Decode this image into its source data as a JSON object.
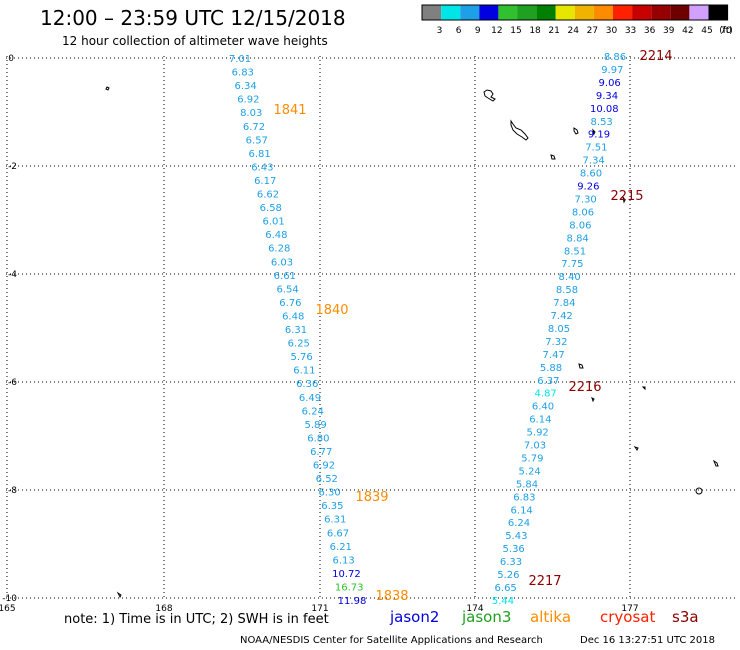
{
  "header": {
    "title": "12:00 – 23:59 UTC 12/15/2018",
    "subtitle": "12 hour collection of altimeter wave heights"
  },
  "color_scale": {
    "unit": "(ft)",
    "bins": [
      {
        "label": "3",
        "color": "#808080"
      },
      {
        "label": "6",
        "color": "#00e5e5"
      },
      {
        "label": "9",
        "color": "#1ea0e6"
      },
      {
        "label": "12",
        "color": "#0000e0"
      },
      {
        "label": "15",
        "color": "#30c030"
      },
      {
        "label": "18",
        "color": "#20a020"
      },
      {
        "label": "21",
        "color": "#008000"
      },
      {
        "label": "24",
        "color": "#e6e600"
      },
      {
        "label": "27",
        "color": "#f0b400"
      },
      {
        "label": "30",
        "color": "#ff8c00"
      },
      {
        "label": "33",
        "color": "#ff2000"
      },
      {
        "label": "36",
        "color": "#c80000"
      },
      {
        "label": "39",
        "color": "#960000"
      },
      {
        "label": "42",
        "color": "#6e0000"
      },
      {
        "label": "45",
        "color": "#d2a0ff"
      },
      {
        "label": "70",
        "color": "#000000"
      }
    ]
  },
  "axes": {
    "lat_ticks": [
      "0",
      "-2",
      "-4",
      "-6",
      "-8",
      "-10"
    ],
    "lon_ticks": [
      "165",
      "168",
      "171",
      "174",
      "177"
    ]
  },
  "tracks": [
    {
      "name": "west",
      "values": [
        "7.01",
        "6.83",
        "6.34",
        "6.92",
        "8.03",
        "6.72",
        "6.57",
        "6.81",
        "6.43",
        "6.17",
        "6.62",
        "6.58",
        "6.01",
        "6.48",
        "6.28",
        "6.03",
        "6.61",
        "6.54",
        "6.76",
        "6.48",
        "6.31",
        "6.25",
        "5.76",
        "6.11",
        "6.36",
        "6.49",
        "6.24",
        "5.89",
        "6.80",
        "6.77",
        "6.92",
        "6.52",
        "6.30",
        "6.35",
        "6.31",
        "6.67",
        "6.21",
        "6.13",
        "10.72",
        "16.73",
        "11.98"
      ],
      "colors": [
        "#1ea0e6",
        "#1ea0e6",
        "#1ea0e6",
        "#1ea0e6",
        "#1ea0e6",
        "#1ea0e6",
        "#1ea0e6",
        "#1ea0e6",
        "#1ea0e6",
        "#1ea0e6",
        "#1ea0e6",
        "#1ea0e6",
        "#1ea0e6",
        "#1ea0e6",
        "#1ea0e6",
        "#1ea0e6",
        "#1ea0e6",
        "#1ea0e6",
        "#1ea0e6",
        "#1ea0e6",
        "#1ea0e6",
        "#1ea0e6",
        "#1ea0e6",
        "#1ea0e6",
        "#1ea0e6",
        "#1ea0e6",
        "#1ea0e6",
        "#1ea0e6",
        "#1ea0e6",
        "#1ea0e6",
        "#1ea0e6",
        "#1ea0e6",
        "#1ea0e6",
        "#1ea0e6",
        "#1ea0e6",
        "#1ea0e6",
        "#1ea0e6",
        "#1ea0e6",
        "#0000e0",
        "#30c030",
        "#0000e0"
      ]
    },
    {
      "name": "east",
      "values": [
        "8.86",
        "9.97",
        "9.06",
        "9.34",
        "10.08",
        "8.53",
        "9.19",
        "7.51",
        "7.34",
        "8.60",
        "9.26",
        "7.30",
        "8.06",
        "8.06",
        "8.84",
        "8.51",
        "7.75",
        "8.40",
        "8.58",
        "7.84",
        "7.42",
        "8.05",
        "7.32",
        "7.47",
        "5.88",
        "6.37",
        "4.87",
        "6.40",
        "6.14",
        "5.92",
        "7.03",
        "5.79",
        "5.24",
        "5.84",
        "6.83",
        "6.14",
        "6.24",
        "5.43",
        "5.36",
        "6.33",
        "5.26",
        "6.65",
        "5.44"
      ],
      "colors": [
        "#1ea0e6",
        "#1ea0e6",
        "#0000e0",
        "#0000e0",
        "#0000e0",
        "#1ea0e6",
        "#0000e0",
        "#1ea0e6",
        "#1ea0e6",
        "#1ea0e6",
        "#0000e0",
        "#1ea0e6",
        "#1ea0e6",
        "#1ea0e6",
        "#1ea0e6",
        "#1ea0e6",
        "#1ea0e6",
        "#1ea0e6",
        "#1ea0e6",
        "#1ea0e6",
        "#1ea0e6",
        "#1ea0e6",
        "#1ea0e6",
        "#1ea0e6",
        "#1ea0e6",
        "#1ea0e6",
        "#00e5e5",
        "#1ea0e6",
        "#1ea0e6",
        "#1ea0e6",
        "#1ea0e6",
        "#1ea0e6",
        "#1ea0e6",
        "#1ea0e6",
        "#1ea0e6",
        "#1ea0e6",
        "#1ea0e6",
        "#1ea0e6",
        "#1ea0e6",
        "#1ea0e6",
        "#1ea0e6",
        "#1ea0e6",
        "#00e5e5"
      ]
    }
  ],
  "time_labels": [
    {
      "text": "1841",
      "color": "#ff8c00"
    },
    {
      "text": "1840",
      "color": "#ff8c00"
    },
    {
      "text": "1839",
      "color": "#ff8c00"
    },
    {
      "text": "1838",
      "color": "#ff8c00"
    },
    {
      "text": "2214",
      "color": "#8b0000"
    },
    {
      "text": "2215",
      "color": "#8b0000"
    },
    {
      "text": "2216",
      "color": "#8b0000"
    },
    {
      "text": "2217",
      "color": "#8b0000"
    }
  ],
  "footer": {
    "note": "note: 1) Time is in UTC; 2) SWH is in feet",
    "satellites": [
      {
        "name": "jason2",
        "color": "#0000e0"
      },
      {
        "name": "jason3",
        "color": "#20a020"
      },
      {
        "name": "altika",
        "color": "#ff8c00"
      },
      {
        "name": "cryosat",
        "color": "#ff2000"
      },
      {
        "name": "s3a",
        "color": "#8b0000"
      }
    ],
    "credit": "NOAA/NESDIS Center for Satellite Applications and Research",
    "timestamp": "Dec 16 13:27:51 UTC 2018"
  }
}
